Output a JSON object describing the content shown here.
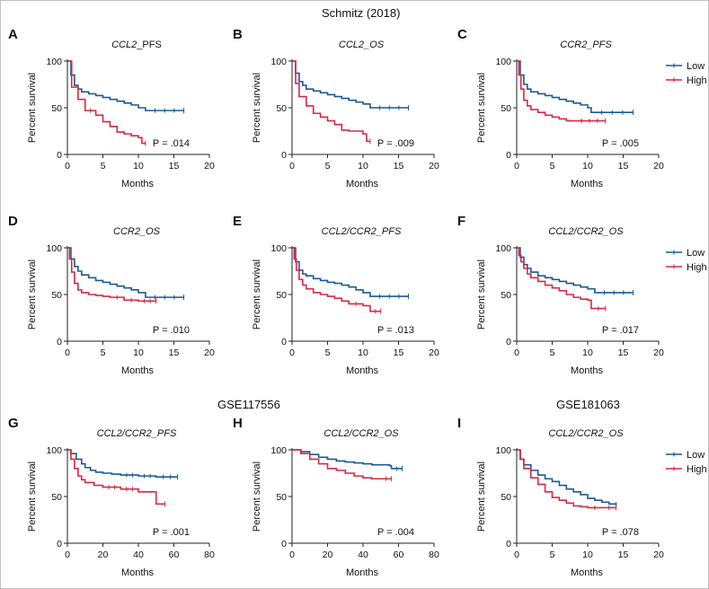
{
  "sections": {
    "top": "Schmitz (2018)",
    "left": "GSE117556",
    "right": "GSE181063"
  },
  "legend": {
    "low": "Low",
    "high": "High"
  },
  "colors": {
    "low": "#1a5a96",
    "high": "#d42a45",
    "axis": "#222222"
  },
  "chart_data": [
    {
      "id": "A",
      "type": "line",
      "title": "CCL2_PFS",
      "title_italic": "CCL2",
      "title_rest": "_PFS",
      "xlabel": "Months",
      "ylabel": "Percent survival",
      "xlim": [
        0,
        20
      ],
      "ylim": [
        0,
        100
      ],
      "xticks": [
        0,
        5,
        10,
        15,
        20
      ],
      "yticks": [
        0,
        50,
        100
      ],
      "pvalue": "P = .014",
      "series": [
        {
          "name": "Low",
          "x": [
            0,
            0.5,
            1,
            1.5,
            2,
            3,
            4,
            5,
            6,
            7,
            8,
            9,
            10,
            11,
            16.4
          ],
          "y": [
            100,
            85,
            74,
            70,
            67,
            65,
            63,
            61,
            59,
            57,
            55,
            53,
            50,
            47,
            47
          ]
        },
        {
          "name": "High",
          "x": [
            0,
            0.6,
            1.5,
            2.5,
            4,
            5,
            6,
            7,
            8,
            9,
            10,
            10.5,
            11
          ],
          "y": [
            100,
            72,
            59,
            47,
            42,
            35,
            30,
            24,
            22,
            20,
            18,
            12,
            12
          ]
        }
      ]
    },
    {
      "id": "B",
      "type": "line",
      "title": "CCL2_OS",
      "title_italic": "CCL2_OS",
      "title_rest": "",
      "xlabel": "Months",
      "ylabel": "Percent survival",
      "xlim": [
        0,
        20
      ],
      "ylim": [
        0,
        100
      ],
      "xticks": [
        0,
        5,
        10,
        15,
        20
      ],
      "yticks": [
        0,
        50,
        100
      ],
      "pvalue": "P = .009",
      "series": [
        {
          "name": "Low",
          "x": [
            0,
            0.5,
            1,
            1.5,
            2,
            3,
            4,
            5,
            6,
            7,
            8,
            9,
            10,
            11,
            16.4
          ],
          "y": [
            100,
            87,
            78,
            74,
            70,
            68,
            66,
            64,
            62,
            60,
            58,
            56,
            54,
            50,
            50
          ]
        },
        {
          "name": "High",
          "x": [
            0,
            0.5,
            1,
            2,
            3,
            4,
            5,
            6,
            7,
            8,
            9,
            10,
            10.5,
            11
          ],
          "y": [
            100,
            76,
            62,
            52,
            44,
            40,
            36,
            32,
            26,
            25,
            25,
            22,
            14,
            14
          ]
        }
      ]
    },
    {
      "id": "C",
      "type": "line",
      "title": "CCR2_PFS",
      "title_italic": "CCR2_PFS",
      "title_rest": "",
      "xlabel": "Months",
      "ylabel": "Percent survival",
      "xlim": [
        0,
        20
      ],
      "ylim": [
        0,
        100
      ],
      "xticks": [
        0,
        5,
        10,
        15,
        20
      ],
      "yticks": [
        0,
        50,
        100
      ],
      "pvalue": "P = .005",
      "series": [
        {
          "name": "Low",
          "x": [
            0,
            0.5,
            1,
            1.5,
            2,
            3,
            4,
            5,
            6,
            7,
            8,
            9,
            10,
            10.5,
            16.4
          ],
          "y": [
            100,
            85,
            75,
            70,
            67,
            65,
            63,
            61,
            59,
            57,
            55,
            53,
            50,
            45,
            45
          ]
        },
        {
          "name": "High",
          "x": [
            0,
            0.3,
            0.6,
            1,
            1.5,
            2,
            3,
            4,
            5,
            6,
            7,
            8,
            12.5
          ],
          "y": [
            100,
            85,
            70,
            58,
            52,
            48,
            45,
            42,
            40,
            38,
            36,
            36,
            36
          ]
        }
      ]
    },
    {
      "id": "D",
      "type": "line",
      "title": "CCR2_OS",
      "title_italic": "CCR2_OS",
      "title_rest": "",
      "xlabel": "Months",
      "ylabel": "Percent survival",
      "xlim": [
        0,
        20
      ],
      "ylim": [
        0,
        100
      ],
      "xticks": [
        0,
        5,
        10,
        15,
        20
      ],
      "yticks": [
        0,
        50,
        100
      ],
      "pvalue": "P = .010",
      "series": [
        {
          "name": "Low",
          "x": [
            0,
            0.5,
            1,
            1.5,
            2,
            3,
            4,
            5,
            6,
            7,
            8,
            9,
            10,
            11,
            16.4
          ],
          "y": [
            100,
            88,
            80,
            75,
            71,
            68,
            65,
            63,
            61,
            59,
            57,
            55,
            52,
            47,
            47
          ]
        },
        {
          "name": "High",
          "x": [
            0,
            0.3,
            0.6,
            1,
            1.5,
            2,
            3,
            4,
            5,
            6,
            8,
            10,
            12.5
          ],
          "y": [
            100,
            88,
            74,
            62,
            55,
            52,
            50,
            49,
            48,
            47,
            44,
            43,
            43
          ]
        }
      ]
    },
    {
      "id": "E",
      "type": "line",
      "title": "CCL2/CCR2_PFS",
      "title_italic": "CCL2/CCR2_PFS",
      "title_rest": "",
      "xlabel": "Months",
      "ylabel": "Percent survival",
      "xlim": [
        0,
        20
      ],
      "ylim": [
        0,
        100
      ],
      "xticks": [
        0,
        5,
        10,
        15,
        20
      ],
      "yticks": [
        0,
        50,
        100
      ],
      "pvalue": "P = .013",
      "series": [
        {
          "name": "Low",
          "x": [
            0,
            0.5,
            1,
            1.5,
            2,
            3,
            4,
            5,
            6,
            7,
            8,
            9,
            10,
            11,
            16.4
          ],
          "y": [
            100,
            85,
            76,
            72,
            70,
            67,
            65,
            63,
            62,
            60,
            58,
            55,
            52,
            48,
            48
          ]
        },
        {
          "name": "High",
          "x": [
            0,
            0.3,
            0.6,
            1,
            1.5,
            2,
            3,
            4,
            5,
            6,
            7,
            8,
            10,
            11,
            12.5
          ],
          "y": [
            100,
            88,
            76,
            66,
            60,
            56,
            52,
            50,
            48,
            46,
            43,
            40,
            38,
            32,
            32
          ]
        }
      ]
    },
    {
      "id": "F",
      "type": "line",
      "title": "CCL2/CCR2_OS",
      "title_italic": "CCL2/CCR2_OS",
      "title_rest": "",
      "xlabel": "Months",
      "ylabel": "Percent survival",
      "xlim": [
        0,
        20
      ],
      "ylim": [
        0,
        100
      ],
      "xticks": [
        0,
        5,
        10,
        15,
        20
      ],
      "yticks": [
        0,
        50,
        100
      ],
      "pvalue": "P = .017",
      "series": [
        {
          "name": "Low",
          "x": [
            0,
            0.5,
            1,
            1.5,
            2,
            3,
            4,
            5,
            6,
            7,
            8,
            9,
            10,
            11,
            16.4
          ],
          "y": [
            100,
            90,
            82,
            78,
            74,
            70,
            68,
            66,
            64,
            62,
            60,
            58,
            56,
            52,
            52
          ]
        },
        {
          "name": "High",
          "x": [
            0,
            0.3,
            0.6,
            1,
            1.5,
            2,
            3,
            4,
            5,
            6,
            7,
            8,
            9,
            10,
            10.5,
            12.5
          ],
          "y": [
            100,
            92,
            85,
            78,
            72,
            68,
            64,
            60,
            57,
            54,
            50,
            47,
            45,
            44,
            35,
            35
          ]
        }
      ]
    },
    {
      "id": "G",
      "type": "line",
      "title": "CCL2/CCR2_PFS",
      "title_italic": "CCL2/CCR2_PFS",
      "title_rest": "",
      "xlabel": "Months",
      "ylabel": "Percent survival",
      "xlim": [
        0,
        80
      ],
      "ylim": [
        0,
        100
      ],
      "xticks": [
        0,
        20,
        40,
        60,
        80
      ],
      "yticks": [
        0,
        50,
        100
      ],
      "pvalue": "P = .001",
      "series": [
        {
          "name": "Low",
          "x": [
            0,
            2,
            5,
            8,
            10,
            13,
            16,
            20,
            25,
            30,
            40,
            50,
            62
          ],
          "y": [
            100,
            96,
            90,
            85,
            81,
            78,
            76,
            75,
            74,
            73,
            72,
            71,
            71
          ]
        },
        {
          "name": "High",
          "x": [
            0,
            2,
            4,
            6,
            8,
            10,
            15,
            20,
            30,
            40,
            45,
            50,
            55
          ],
          "y": [
            100,
            90,
            80,
            72,
            68,
            65,
            62,
            60,
            58,
            55,
            55,
            42,
            42
          ]
        }
      ]
    },
    {
      "id": "H",
      "type": "line",
      "title": "CCL2/CCR2_OS",
      "title_italic": "CCL2/CCR2_OS",
      "title_rest": "",
      "xlabel": "Months",
      "ylabel": "Percent survival",
      "xlim": [
        0,
        80
      ],
      "ylim": [
        0,
        100
      ],
      "xticks": [
        0,
        20,
        40,
        60,
        80
      ],
      "yticks": [
        0,
        50,
        100
      ],
      "pvalue": "P = .004",
      "series": [
        {
          "name": "Low",
          "x": [
            0,
            5,
            10,
            15,
            20,
            25,
            30,
            35,
            40,
            45,
            50,
            55,
            56,
            62
          ],
          "y": [
            100,
            98,
            95,
            92,
            90,
            88,
            87,
            86,
            85,
            84,
            84,
            83,
            80,
            80
          ]
        },
        {
          "name": "High",
          "x": [
            0,
            5,
            10,
            15,
            20,
            25,
            30,
            35,
            40,
            45,
            50,
            56
          ],
          "y": [
            100,
            96,
            90,
            85,
            80,
            78,
            75,
            72,
            70,
            69,
            69,
            69
          ]
        }
      ]
    },
    {
      "id": "I",
      "type": "line",
      "title": "CCL2/CCR2_OS",
      "title_italic": "CCL2/CCR2_OS",
      "title_rest": "",
      "xlabel": "Months",
      "ylabel": "Percent survival",
      "xlim": [
        0,
        20
      ],
      "ylim": [
        0,
        100
      ],
      "xticks": [
        0,
        5,
        10,
        15,
        20
      ],
      "yticks": [
        0,
        50,
        100
      ],
      "pvalue": "P = .078",
      "series": [
        {
          "name": "Low",
          "x": [
            0,
            0.5,
            1,
            2,
            3,
            4,
            5,
            6,
            7,
            8,
            9,
            10,
            11,
            12,
            13,
            14
          ],
          "y": [
            100,
            90,
            84,
            78,
            73,
            69,
            66,
            62,
            58,
            55,
            52,
            48,
            46,
            44,
            42,
            41
          ]
        },
        {
          "name": "High",
          "x": [
            0,
            0.5,
            1,
            2,
            3,
            4,
            5,
            6,
            7,
            8,
            9,
            10,
            12,
            14
          ],
          "y": [
            100,
            90,
            80,
            70,
            63,
            55,
            49,
            46,
            43,
            40,
            39,
            38,
            38,
            38
          ]
        }
      ]
    }
  ]
}
